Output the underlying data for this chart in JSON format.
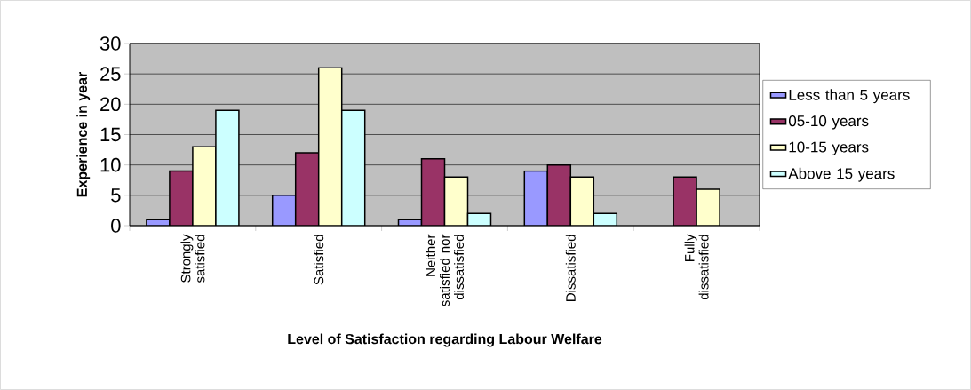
{
  "chart_data": {
    "type": "bar",
    "xlabel": "Level of Satisfaction regarding Labour Welfare",
    "ylabel": "Experience in year",
    "categories": [
      "Strongly satisfied",
      "Satisfied",
      "Neither satisfied nor dissatisfied",
      "Dissatisfied",
      "Fully dissatisfied"
    ],
    "series": [
      {
        "name": "Less than 5 years",
        "color": "#9999ff",
        "values": [
          1,
          5,
          1,
          9,
          null
        ]
      },
      {
        "name": "05-10 years",
        "color": "#993366",
        "values": [
          9,
          12,
          11,
          10,
          8
        ]
      },
      {
        "name": "10-15 years",
        "color": "#ffffcc",
        "values": [
          13,
          26,
          8,
          8,
          6
        ]
      },
      {
        "name": "Above 15 years",
        "color": "#ccffff",
        "values": [
          19,
          19,
          2,
          2,
          null
        ]
      }
    ],
    "ylim": [
      0,
      30
    ],
    "yticks": [
      0,
      5,
      10,
      15,
      20,
      25,
      30
    ],
    "grid": "y",
    "legend": "right"
  }
}
